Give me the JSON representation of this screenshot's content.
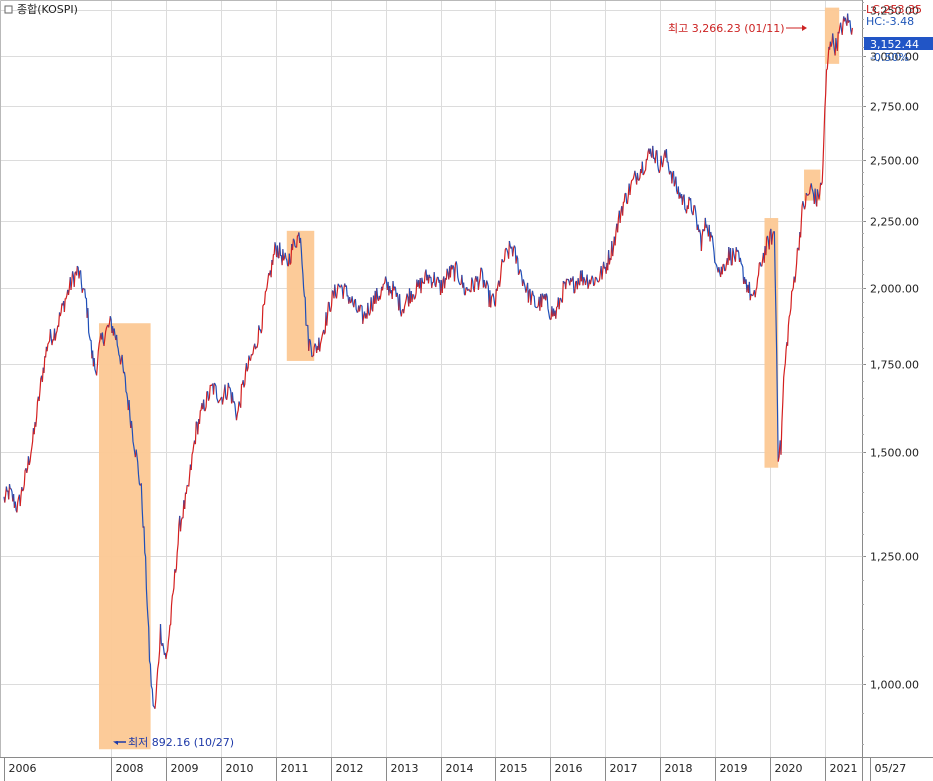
{
  "chart_data": {
    "type": "line",
    "title": "종합(KOSPI)",
    "y_scale": "log",
    "ylim": [
      880,
      3310
    ],
    "y_ticks": [
      1000,
      1250,
      1500,
      1750,
      2000,
      2250,
      2500,
      2750,
      3000,
      3250
    ],
    "y_tick_labels": [
      "1,000.00",
      "1,250.00",
      "1,500.00",
      "1,750.00",
      "2,000.00",
      "2,250.00",
      "2,500.00",
      "2,750.00",
      "3,000.00",
      "3,250.00"
    ],
    "x_range": [
      2006.05,
      2021.53
    ],
    "x_ticks": [
      {
        "pos": 2006.05,
        "label": "2006"
      },
      {
        "pos": 2008.0,
        "label": "2008"
      },
      {
        "pos": 2009.0,
        "label": "2009"
      },
      {
        "pos": 2010.0,
        "label": "2010"
      },
      {
        "pos": 2011.0,
        "label": "2011"
      },
      {
        "pos": 2012.0,
        "label": "2012"
      },
      {
        "pos": 2013.0,
        "label": "2013"
      },
      {
        "pos": 2014.0,
        "label": "2014"
      },
      {
        "pos": 2015.0,
        "label": "2015"
      },
      {
        "pos": 2016.0,
        "label": "2016"
      },
      {
        "pos": 2017.0,
        "label": "2017"
      },
      {
        "pos": 2018.0,
        "label": "2018"
      },
      {
        "pos": 2019.0,
        "label": "2019"
      },
      {
        "pos": 2020.0,
        "label": "2020"
      },
      {
        "pos": 2021.0,
        "label": "2021"
      },
      {
        "pos": 2021.95,
        "label": "05/27"
      }
    ],
    "series": [
      {
        "name": "종합(KOSPI)",
        "x": [
          2006.05,
          2006.15,
          2006.3,
          2006.45,
          2006.6,
          2006.75,
          2006.85,
          2007.0,
          2007.15,
          2007.3,
          2007.4,
          2007.55,
          2007.65,
          2007.72,
          2007.8,
          2007.9,
          2008.0,
          2008.1,
          2008.2,
          2008.3,
          2008.4,
          2008.5,
          2008.55,
          2008.6,
          2008.7,
          2008.75,
          2008.8,
          2008.85,
          2008.9,
          2009.0,
          2009.1,
          2009.25,
          2009.4,
          2009.55,
          2009.7,
          2009.85,
          2010.0,
          2010.15,
          2010.3,
          2010.45,
          2010.6,
          2010.75,
          2010.9,
          2011.0,
          2011.1,
          2011.2,
          2011.35,
          2011.45,
          2011.55,
          2011.6,
          2011.7,
          2011.8,
          2011.9,
          2012.0,
          2012.15,
          2012.3,
          2012.45,
          2012.6,
          2012.75,
          2012.9,
          2013.0,
          2013.15,
          2013.3,
          2013.45,
          2013.6,
          2013.75,
          2013.9,
          2014.0,
          2014.15,
          2014.3,
          2014.45,
          2014.6,
          2014.75,
          2014.9,
          2015.0,
          2015.15,
          2015.3,
          2015.45,
          2015.6,
          2015.75,
          2015.9,
          2016.0,
          2016.1,
          2016.25,
          2016.4,
          2016.55,
          2016.7,
          2016.85,
          2017.0,
          2017.15,
          2017.3,
          2017.45,
          2017.6,
          2017.75,
          2017.85,
          2018.0,
          2018.1,
          2018.2,
          2018.3,
          2018.45,
          2018.6,
          2018.75,
          2018.85,
          2018.95,
          2019.1,
          2019.25,
          2019.4,
          2019.55,
          2019.7,
          2019.85,
          2020.0,
          2020.08,
          2020.15,
          2020.2,
          2020.25,
          2020.35,
          2020.5,
          2020.6,
          2020.75,
          2020.85,
          2020.95,
          2021.03,
          2021.1,
          2021.2,
          2021.3,
          2021.4,
          2021.5
        ],
        "y": [
          1380,
          1400,
          1360,
          1440,
          1550,
          1720,
          1820,
          1860,
          1950,
          2030,
          2060,
          1950,
          1780,
          1730,
          1810,
          1850,
          1880,
          1830,
          1750,
          1650,
          1550,
          1450,
          1400,
          1300,
          1050,
          980,
          950,
          1020,
          1100,
          1040,
          1130,
          1320,
          1400,
          1560,
          1630,
          1680,
          1650,
          1680,
          1600,
          1720,
          1790,
          1890,
          2050,
          2150,
          2120,
          2080,
          2170,
          2200,
          1900,
          1820,
          1790,
          1820,
          1880,
          1950,
          2010,
          1980,
          1930,
          1900,
          1950,
          1980,
          2010,
          1990,
          1930,
          1980,
          2000,
          2040,
          2030,
          2000,
          2050,
          2060,
          1990,
          2010,
          2040,
          1960,
          1950,
          2100,
          2150,
          2060,
          1980,
          1940,
          1960,
          1920,
          1910,
          2000,
          2010,
          2040,
          2030,
          2030,
          2070,
          2160,
          2300,
          2380,
          2450,
          2500,
          2550,
          2480,
          2520,
          2450,
          2380,
          2320,
          2300,
          2170,
          2250,
          2160,
          2050,
          2120,
          2110,
          2030,
          1950,
          2100,
          2180,
          2200,
          1500,
          1510,
          1700,
          1890,
          2120,
          2300,
          2380,
          2330,
          2400,
          2900,
          3100,
          3050,
          3150,
          3200,
          3152
        ]
      }
    ],
    "highlights": [
      {
        "x_start": 2007.78,
        "x_end": 2008.72,
        "y_low": 892,
        "y_high": 1880
      },
      {
        "x_start": 2011.2,
        "x_end": 2011.7,
        "y_low": 1760,
        "y_high": 2210
      },
      {
        "x_start": 2019.9,
        "x_end": 2020.15,
        "y_low": 1460,
        "y_high": 2260
      },
      {
        "x_start": 2020.62,
        "x_end": 2020.92,
        "y_low": 2330,
        "y_high": 2460
      },
      {
        "x_start": 2021.0,
        "x_end": 2021.26,
        "y_low": 2960,
        "y_high": 3266
      }
    ],
    "annotations": [
      {
        "text": "최고 3,266.23 (01/11)",
        "x": 2021.0,
        "y": 3266
      },
      {
        "text": "최저 892.16 (10/27)",
        "x": 2008.75,
        "y": 892
      }
    ],
    "info": {
      "lc": "LC:253.35",
      "hc": "HC:-3.48",
      "last": "3,152.44",
      "change": "-0.50%"
    }
  }
}
